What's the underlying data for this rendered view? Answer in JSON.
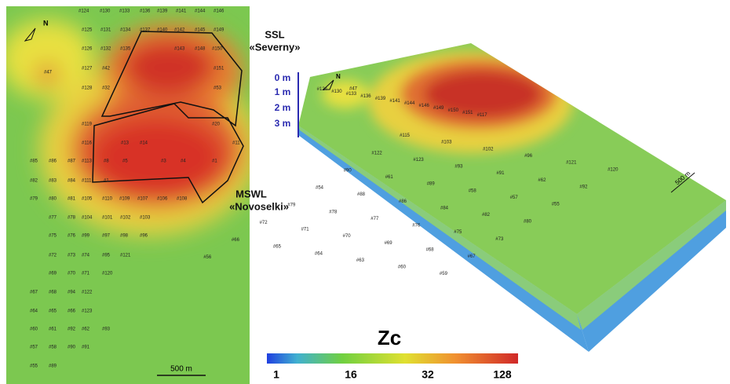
{
  "left_map": {
    "north": "N",
    "scale": "500 m",
    "ssl": [
      "SSL",
      "«Severny»"
    ],
    "mswl": [
      "MSWL",
      "«Novoselki»"
    ],
    "lone": "#47",
    "rows": [
      [
        "#124",
        "#130",
        "#133",
        "#136",
        "#139",
        "#141",
        "#144",
        "#146"
      ],
      [
        "#125",
        "#131",
        "#134",
        "#137",
        "#140",
        "#142",
        "#145",
        "#149"
      ],
      [
        "#126",
        "#132",
        "#135",
        "#143",
        "#148",
        "#150"
      ],
      [
        "#127",
        "#42",
        "#151"
      ],
      [
        "#128",
        "#32",
        "#53"
      ],
      [
        "#119",
        "#20"
      ],
      [
        "#116",
        "#13",
        "#14",
        "#11"
      ],
      [
        "#85",
        "#86",
        "#87",
        "#113",
        "#8",
        "#5",
        "#3",
        "#4",
        "#1"
      ],
      [
        "#82",
        "#83",
        "#84",
        "#111",
        "#1"
      ],
      [
        "#79",
        "#80",
        "#81",
        "#105",
        "#110",
        "#109",
        "#107",
        "#106",
        "#108"
      ],
      [
        "#77",
        "#78",
        "#104",
        "#101",
        "#102",
        "#103"
      ],
      [
        "#75",
        "#76",
        "#99",
        "#97",
        "#98",
        "#96"
      ],
      [
        "#72",
        "#73",
        "#74",
        "#95",
        "#121"
      ],
      [
        "#69",
        "#70",
        "#71",
        "#120"
      ],
      [
        "#67",
        "#68",
        "#94",
        "#122"
      ],
      [
        "#64",
        "#65",
        "#66",
        "#123"
      ],
      [
        "#60",
        "#61",
        "#92",
        "#62",
        "#93"
      ],
      [
        "#57",
        "#58",
        "#90",
        "#91"
      ],
      [
        "#55",
        "#89"
      ]
    ]
  },
  "block": {
    "north": "N",
    "scale": "500 m",
    "depths": [
      "0 m",
      "1 m",
      "2 m",
      "3 m"
    ],
    "lone": "#47",
    "wells": [
      "#124",
      "#130",
      "#133",
      "#136",
      "#139",
      "#141",
      "#144",
      "#146",
      "#149",
      "#150",
      "#151",
      "#117",
      "#115",
      "#103",
      "#102",
      "#96",
      "#121",
      "#120",
      "#122",
      "#123",
      "#93",
      "#91",
      "#62",
      "#92",
      "#90",
      "#61",
      "#89",
      "#58",
      "#57",
      "#55",
      "#54",
      "#88",
      "#86",
      "#84",
      "#82",
      "#80",
      "#79",
      "#78",
      "#77",
      "#76",
      "#75",
      "#73",
      "#72",
      "#71",
      "#70",
      "#69",
      "#68",
      "#67",
      "#66",
      "#65",
      "#64",
      "#63",
      "#60",
      "#59",
      "#56"
    ]
  },
  "legend": {
    "title": "Zc",
    "ticks": [
      "1",
      "16",
      "32",
      "128"
    ]
  }
}
